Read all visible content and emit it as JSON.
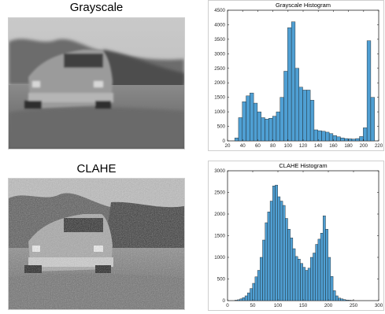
{
  "panels": {
    "gray_title": "Grayscale",
    "clahe_title": "CLAHE"
  },
  "chart_data": [
    {
      "type": "bar",
      "title": "Grayscale Histogram",
      "xlabel": "",
      "ylabel": "",
      "xlim": [
        20,
        220
      ],
      "ylim": [
        0,
        4500
      ],
      "xticks": [
        20,
        40,
        60,
        80,
        100,
        120,
        140,
        160,
        180,
        200,
        220
      ],
      "yticks": [
        0,
        500,
        1000,
        1500,
        2000,
        2500,
        3000,
        3500,
        4000,
        4500
      ],
      "bin_width": 5,
      "bin_centers": [
        32,
        37,
        42,
        47,
        52,
        57,
        62,
        67,
        72,
        77,
        82,
        87,
        92,
        97,
        102,
        107,
        112,
        117,
        122,
        127,
        132,
        137,
        142,
        147,
        152,
        157,
        162,
        167,
        172,
        177,
        182,
        187,
        192,
        197,
        202,
        207,
        212,
        217
      ],
      "values": [
        100,
        800,
        1350,
        1550,
        1650,
        1300,
        1000,
        800,
        750,
        780,
        850,
        1000,
        1500,
        2400,
        3900,
        4100,
        2500,
        1850,
        1750,
        1750,
        1400,
        380,
        350,
        330,
        300,
        250,
        180,
        140,
        100,
        80,
        70,
        60,
        80,
        150,
        450,
        3450,
        1500,
        0
      ],
      "grid": false,
      "bar_color": "#4f9fd3"
    },
    {
      "type": "bar",
      "title": "CLAHE Histogram",
      "xlabel": "",
      "ylabel": "",
      "xlim": [
        0,
        300
      ],
      "ylim": [
        0,
        3000
      ],
      "xticks": [
        0,
        50,
        100,
        150,
        200,
        250,
        300
      ],
      "yticks": [
        0,
        500,
        1000,
        1500,
        2000,
        2500,
        3000
      ],
      "bin_width": 5,
      "bin_centers": [
        17,
        22,
        27,
        32,
        37,
        42,
        47,
        52,
        57,
        62,
        67,
        72,
        77,
        82,
        87,
        92,
        97,
        102,
        107,
        112,
        117,
        122,
        127,
        132,
        137,
        142,
        147,
        152,
        157,
        162,
        167,
        172,
        177,
        182,
        187,
        192,
        197,
        202,
        207,
        212,
        217,
        222,
        227,
        232,
        237,
        242,
        247
      ],
      "values": [
        10,
        20,
        40,
        70,
        110,
        180,
        280,
        400,
        550,
        700,
        1000,
        1400,
        1800,
        2050,
        2300,
        2650,
        2670,
        2400,
        2300,
        2200,
        1900,
        1650,
        1450,
        1200,
        1020,
        960,
        860,
        770,
        700,
        750,
        1000,
        1100,
        1300,
        1420,
        1560,
        1960,
        1650,
        1000,
        560,
        230,
        110,
        60,
        40,
        25,
        15,
        10,
        5
      ],
      "grid": false,
      "bar_color": "#4f9fd3"
    }
  ]
}
